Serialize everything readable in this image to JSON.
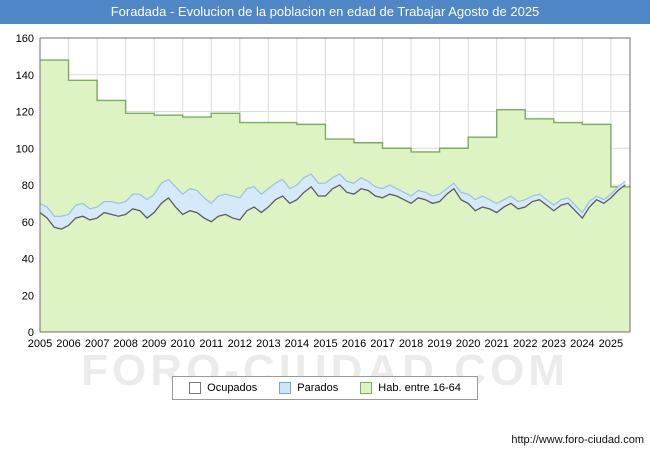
{
  "title_bar": {
    "text": "Foradada - Evolucion de la poblacion en edad de Trabajar Agosto de 2025",
    "bg": "#4f86c6",
    "fg": "#ffffff"
  },
  "watermark": "FORO-CIUDAD.COM",
  "footer": {
    "url": "http://www.foro-ciudad.com"
  },
  "legend": [
    {
      "label": "Ocupados",
      "fill": "#ffffff",
      "border": "#7a7a7a"
    },
    {
      "label": "Parados",
      "fill": "#cfe5f6",
      "border": "#7da7c9"
    },
    {
      "label": "Hab. entre 16-64",
      "fill": "#ddf3c4",
      "border": "#7cac5f"
    }
  ],
  "chart_data": {
    "type": "area",
    "title": "Foradada - Evolucion de la poblacion en edad de Trabajar Agosto de 2025",
    "xlabel": "",
    "ylabel": "",
    "ylim": [
      0,
      160
    ],
    "ytick_step": 20,
    "y_ticks": [
      0,
      20,
      40,
      60,
      80,
      100,
      120,
      140,
      160
    ],
    "x_start": 2005,
    "x_end": 2025.67,
    "x_ticks": [
      2005,
      2006,
      2007,
      2008,
      2009,
      2010,
      2011,
      2012,
      2013,
      2014,
      2015,
      2016,
      2017,
      2018,
      2019,
      2020,
      2021,
      2022,
      2023,
      2024,
      2025
    ],
    "grid": true,
    "legend_position": "bottom",
    "series": [
      {
        "name": "Hab. entre 16-64",
        "mode": "step-yearly",
        "years": [
          2005,
          2006,
          2007,
          2008,
          2009,
          2010,
          2011,
          2012,
          2013,
          2014,
          2015,
          2016,
          2017,
          2018,
          2019,
          2020,
          2021,
          2022,
          2023,
          2024,
          2025
        ],
        "values": [
          148,
          137,
          126,
          119,
          118,
          117,
          119,
          114,
          114,
          113,
          105,
          103,
          100,
          98,
          100,
          106,
          121,
          116,
          114,
          113,
          79
        ],
        "line": "#7cac5f",
        "fill": "#ddf3c4"
      },
      {
        "name": "Parados",
        "mode": "band-above-ocupados",
        "x0": 2005,
        "x_step": 0.25,
        "heights": [
          5,
          6,
          6,
          7,
          6,
          7,
          7,
          6,
          6,
          6,
          7,
          7,
          7,
          8,
          9,
          10,
          10,
          11,
          10,
          11,
          11,
          12,
          12,
          11,
          10,
          11,
          11,
          12,
          12,
          12,
          11,
          10,
          10,
          9,
          9,
          8,
          8,
          8,
          7,
          7,
          7,
          6,
          6,
          6,
          6,
          6,
          5,
          5,
          5,
          5,
          4,
          4,
          4,
          4,
          4,
          4,
          4,
          3,
          3,
          4,
          5,
          6,
          6,
          5,
          5,
          4,
          4,
          4,
          4,
          3,
          3,
          3,
          3,
          3,
          3,
          3,
          3,
          3,
          2,
          2,
          2,
          2,
          2
        ],
        "line": "#9fc0dc",
        "fill": "#d6e9f8"
      },
      {
        "name": "Ocupados",
        "mode": "line",
        "x0": 2005,
        "x_step": 0.25,
        "values": [
          65,
          62,
          57,
          56,
          58,
          62,
          63,
          61,
          62,
          65,
          64,
          63,
          64,
          67,
          66,
          62,
          65,
          70,
          73,
          68,
          64,
          66,
          65,
          62,
          60,
          63,
          64,
          62,
          61,
          66,
          68,
          65,
          68,
          72,
          74,
          70,
          72,
          76,
          79,
          74,
          74,
          78,
          80,
          76,
          75,
          78,
          77,
          74,
          73,
          75,
          74,
          72,
          70,
          73,
          72,
          70,
          71,
          75,
          78,
          72,
          70,
          66,
          68,
          67,
          65,
          68,
          70,
          67,
          68,
          71,
          72,
          69,
          66,
          69,
          70,
          66,
          62,
          68,
          72,
          70,
          73,
          77,
          80
        ],
        "line": "#5b5b66"
      }
    ]
  }
}
